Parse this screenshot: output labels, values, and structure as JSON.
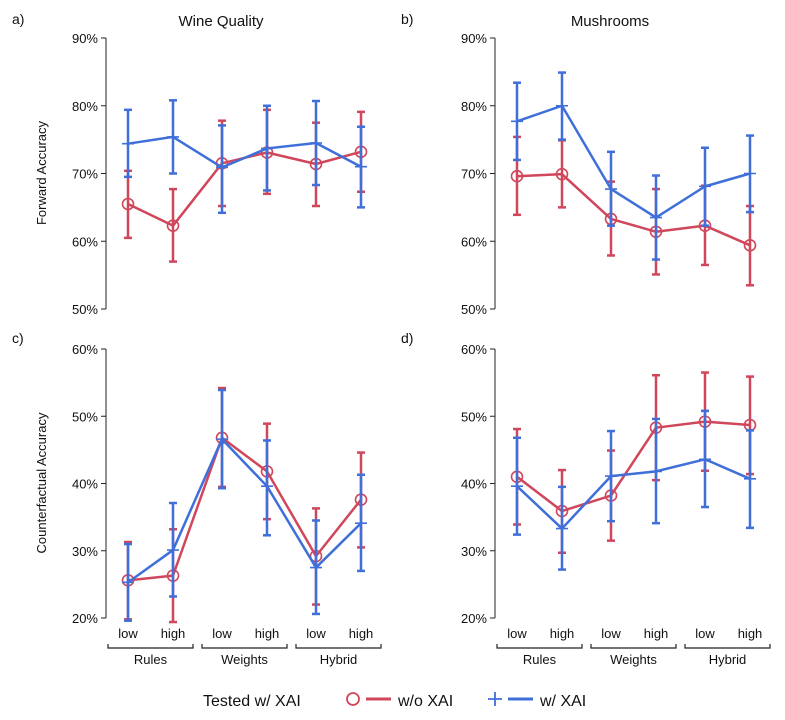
{
  "legend": {
    "title": "Tested w/ XAI",
    "wo_label": "w/o XAI",
    "w_label": "w/ XAI"
  },
  "colors": {
    "wo_xai": "#d0465a",
    "w_xai": "#3f6fd9"
  },
  "x_groups": [
    {
      "label": "Rules",
      "levels": [
        "low",
        "high"
      ]
    },
    {
      "label": "Weights",
      "levels": [
        "low",
        "high"
      ]
    },
    {
      "label": "Hybrid",
      "levels": [
        "low",
        "high"
      ]
    }
  ],
  "y_labels": {
    "top_row": "Forward Accuracy",
    "bottom_row": "Counterfactual Accuracy"
  },
  "chart_data": [
    {
      "panel": "a)",
      "title": "Wine Quality",
      "type": "line",
      "ylim": [
        50,
        90
      ],
      "yticks": [
        50,
        60,
        70,
        80,
        90
      ],
      "tick_format": "%",
      "categories": [
        "low",
        "high",
        "low",
        "high",
        "low",
        "high"
      ],
      "series": [
        {
          "name": "w/o XAI",
          "values": [
            65.5,
            62.3,
            71.5,
            73.1,
            71.4,
            73.2
          ],
          "err_low": [
            60.5,
            57.0,
            65.2,
            67.0,
            65.2,
            67.3
          ],
          "err_high": [
            70.4,
            67.7,
            77.8,
            79.4,
            77.5,
            79.1
          ]
        },
        {
          "name": "w/ XAI",
          "values": [
            74.4,
            75.4,
            70.9,
            73.7,
            74.5,
            71.0
          ],
          "err_low": [
            69.5,
            70.0,
            64.2,
            67.5,
            68.3,
            65.0
          ],
          "err_high": [
            79.4,
            80.8,
            77.1,
            80.0,
            80.7,
            76.9
          ]
        }
      ]
    },
    {
      "panel": "b)",
      "title": "Mushrooms",
      "type": "line",
      "ylim": [
        50,
        90
      ],
      "yticks": [
        50,
        60,
        70,
        80,
        90
      ],
      "tick_format": "%",
      "categories": [
        "low",
        "high",
        "low",
        "high",
        "low",
        "high"
      ],
      "series": [
        {
          "name": "w/o XAI",
          "values": [
            69.6,
            69.9,
            63.3,
            61.4,
            62.3,
            59.4
          ],
          "err_low": [
            63.9,
            65.0,
            57.9,
            55.1,
            56.5,
            53.5
          ],
          "err_high": [
            75.4,
            74.9,
            68.8,
            67.7,
            68.2,
            65.2
          ]
        },
        {
          "name": "w/ XAI",
          "values": [
            77.7,
            80.0,
            67.7,
            63.5,
            68.1,
            70.0
          ],
          "err_low": [
            72.0,
            75.0,
            62.3,
            57.3,
            62.3,
            64.3
          ],
          "err_high": [
            83.4,
            84.9,
            73.2,
            69.7,
            73.8,
            75.6
          ]
        }
      ]
    },
    {
      "panel": "c)",
      "title": "",
      "type": "line",
      "ylim": [
        20,
        60
      ],
      "yticks": [
        20,
        30,
        40,
        50,
        60
      ],
      "tick_format": "%",
      "categories": [
        "low",
        "high",
        "low",
        "high",
        "low",
        "high"
      ],
      "series": [
        {
          "name": "w/o XAI",
          "values": [
            25.6,
            26.3,
            46.8,
            41.8,
            29.2,
            37.6
          ],
          "err_low": [
            19.8,
            19.4,
            39.5,
            34.7,
            22.0,
            30.5
          ],
          "err_high": [
            31.3,
            33.2,
            54.2,
            48.9,
            36.3,
            44.6
          ]
        },
        {
          "name": "w/ XAI",
          "values": [
            25.3,
            30.1,
            46.6,
            39.6,
            27.5,
            34.1
          ],
          "err_low": [
            19.6,
            23.2,
            39.3,
            32.3,
            20.6,
            27.0
          ],
          "err_high": [
            31.0,
            37.1,
            53.9,
            46.4,
            34.5,
            41.3
          ]
        }
      ]
    },
    {
      "panel": "d)",
      "title": "",
      "type": "line",
      "ylim": [
        20,
        60
      ],
      "yticks": [
        20,
        30,
        40,
        50,
        60
      ],
      "tick_format": "%",
      "categories": [
        "low",
        "high",
        "low",
        "high",
        "low",
        "high"
      ],
      "series": [
        {
          "name": "w/o XAI",
          "values": [
            41.0,
            35.9,
            38.2,
            48.3,
            49.2,
            48.7
          ],
          "err_low": [
            33.9,
            29.7,
            31.5,
            40.5,
            41.9,
            41.4
          ],
          "err_high": [
            48.1,
            42.0,
            44.9,
            56.1,
            56.5,
            55.9
          ]
        },
        {
          "name": "w/ XAI",
          "values": [
            39.6,
            33.3,
            41.1,
            41.8,
            43.6,
            40.7
          ],
          "err_low": [
            32.4,
            27.2,
            34.4,
            34.1,
            36.5,
            33.4
          ],
          "err_high": [
            46.8,
            39.5,
            47.8,
            49.6,
            50.8,
            47.9
          ]
        }
      ]
    }
  ]
}
